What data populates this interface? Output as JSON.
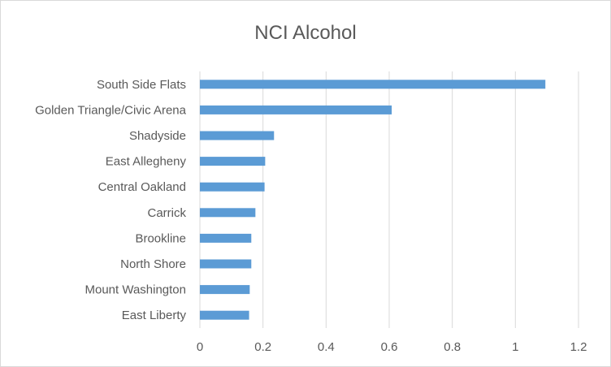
{
  "chart_data": {
    "type": "bar",
    "orientation": "horizontal",
    "title": "NCI Alcohol",
    "xlabel": "",
    "ylabel": "",
    "categories": [
      "South Side Flats",
      "Golden Triangle/Civic Arena",
      "Shadyside",
      "East Allegheny",
      "Central Oakland",
      "Carrick",
      "Brookline",
      "North Shore",
      "Mount Washington",
      "East Liberty"
    ],
    "values": [
      1.095,
      0.608,
      0.235,
      0.207,
      0.205,
      0.176,
      0.163,
      0.163,
      0.158,
      0.156
    ],
    "xlim": [
      0,
      1.2
    ],
    "xticks": [
      "0",
      "0.2",
      "0.4",
      "0.6",
      "0.8",
      "1",
      "1.2"
    ],
    "grid": true,
    "legend": "none",
    "bar_color": "#5b9bd5",
    "grid_color": "#d9d9d9",
    "text_color": "#595959"
  }
}
